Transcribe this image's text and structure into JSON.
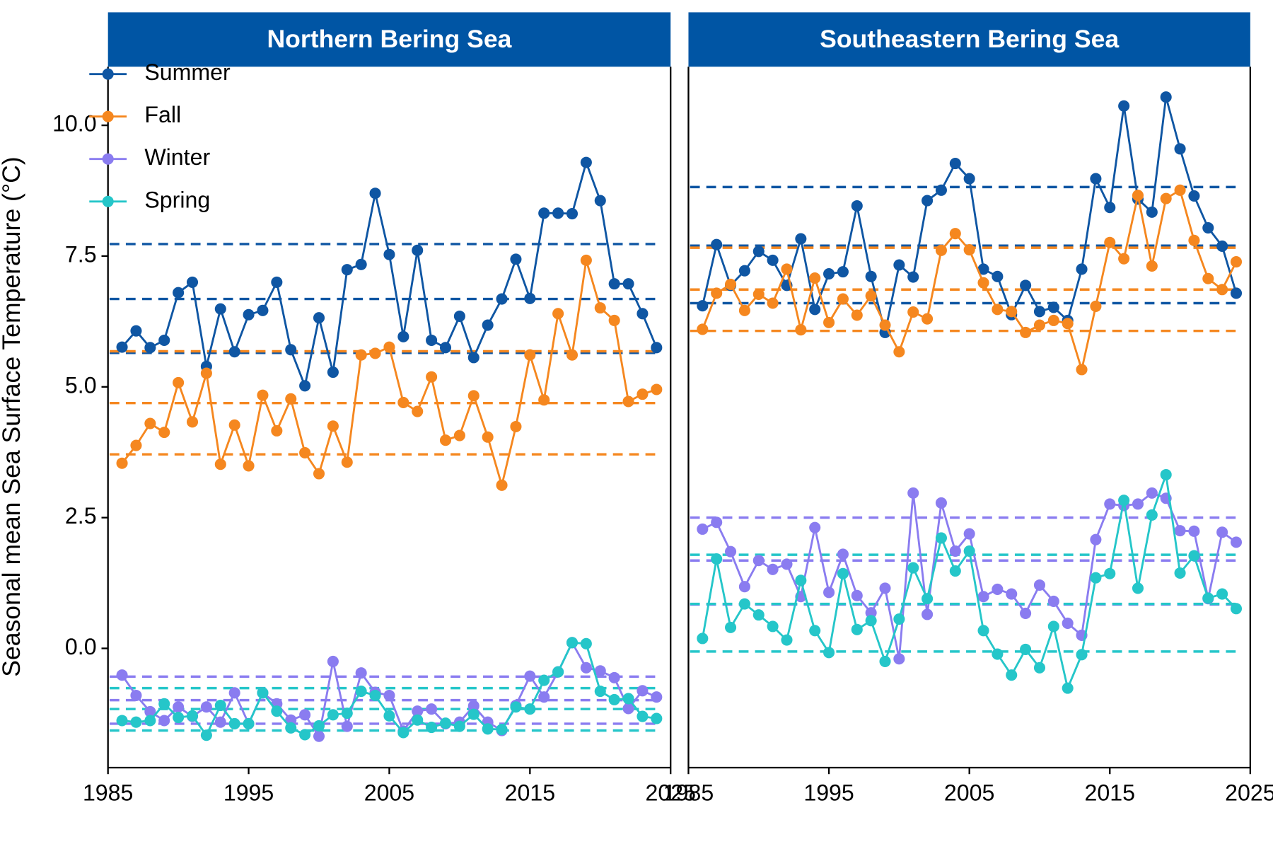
{
  "chart_data": [
    {
      "type": "line",
      "title": "Northern Bering Sea",
      "ylabel": "Seasonal mean Sea Surface Temperature (°C)",
      "legend": "top-left",
      "xlim": [
        1985,
        2025
      ],
      "xticks": [
        1985,
        1995,
        2005,
        2015,
        2025
      ],
      "ylim": [
        -2.28,
        11.12
      ],
      "yticks": [
        {
          "value": 0,
          "label": "0.0"
        },
        2.5,
        {
          "value": 5,
          "label": "5.0"
        },
        7.5,
        {
          "value": 10,
          "label": "10.0"
        }
      ],
      "x": [
        1986,
        1987,
        1988,
        1989,
        1990,
        1991,
        1992,
        1993,
        1994,
        1995,
        1996,
        1997,
        1998,
        1999,
        2000,
        2001,
        2002,
        2003,
        2004,
        2005,
        2006,
        2007,
        2008,
        2009,
        2010,
        2011,
        2012,
        2013,
        2014,
        2015,
        2016,
        2017,
        2018,
        2019,
        2020,
        2021,
        2022,
        2023,
        2024
      ],
      "series": [
        {
          "name": "Summer",
          "color": "#0f56a3",
          "hlines": [
            7.73,
            6.68,
            5.65
          ],
          "values": [
            5.76,
            6.07,
            5.75,
            5.89,
            6.8,
            7.0,
            5.39,
            6.49,
            5.67,
            6.38,
            6.46,
            7.0,
            5.71,
            5.02,
            6.32,
            5.28,
            7.24,
            7.34,
            8.7,
            7.53,
            5.96,
            7.61,
            5.89,
            5.75,
            6.35,
            5.56,
            6.18,
            6.68,
            7.44,
            6.69,
            8.32,
            8.32,
            8.31,
            9.29,
            8.56,
            6.97,
            6.97,
            6.4,
            5.75
          ]
        },
        {
          "name": "Fall",
          "color": "#f5871f",
          "hlines": [
            5.68,
            4.69,
            3.71
          ],
          "values": [
            3.54,
            3.88,
            4.3,
            4.13,
            5.08,
            4.33,
            5.26,
            3.52,
            4.27,
            3.49,
            4.84,
            4.16,
            4.77,
            3.74,
            3.34,
            4.25,
            3.56,
            5.61,
            5.64,
            5.76,
            4.7,
            4.53,
            5.19,
            3.98,
            4.07,
            4.83,
            4.04,
            3.12,
            4.24,
            5.61,
            4.75,
            6.4,
            5.61,
            7.42,
            6.51,
            6.27,
            4.72,
            4.86,
            4.95
          ]
        },
        {
          "name": "Winter",
          "color": "#8a7cf0",
          "hlines": [
            -0.54,
            -0.99,
            -1.44
          ],
          "values": [
            -0.51,
            -0.9,
            -1.21,
            -1.38,
            -1.12,
            -1.3,
            -1.12,
            -1.41,
            -0.85,
            -1.44,
            -0.85,
            -1.06,
            -1.37,
            -1.27,
            -1.68,
            -0.25,
            -1.49,
            -0.47,
            -0.84,
            -0.9,
            -1.58,
            -1.2,
            -1.16,
            -1.44,
            -1.41,
            -1.1,
            -1.41,
            -1.57,
            -1.09,
            -0.53,
            -0.93,
            -0.45,
            0.11,
            -0.37,
            -0.43,
            -0.56,
            -1.15,
            -0.81,
            -0.93
          ]
        },
        {
          "name": "Spring",
          "color": "#25c6c9",
          "hlines": [
            -0.76,
            -1.16,
            -1.57
          ],
          "values": [
            -1.38,
            -1.41,
            -1.38,
            -1.06,
            -1.32,
            -1.29,
            -1.66,
            -1.09,
            -1.44,
            -1.44,
            -0.85,
            -1.2,
            -1.52,
            -1.65,
            -1.48,
            -1.27,
            -1.24,
            -0.82,
            -0.9,
            -1.29,
            -1.61,
            -1.37,
            -1.51,
            -1.43,
            -1.49,
            -1.26,
            -1.54,
            -1.55,
            -1.12,
            -1.16,
            -0.61,
            -0.45,
            0.11,
            0.09,
            -0.82,
            -0.98,
            -0.96,
            -1.3,
            -1.34
          ]
        }
      ]
    },
    {
      "type": "line",
      "title": "Southeastern Bering Sea",
      "xlim": [
        1985,
        2025
      ],
      "xticks": [
        1985,
        1995,
        2005,
        2015,
        2025
      ],
      "ylim": [
        -2.28,
        11.12
      ],
      "x": [
        1986,
        1987,
        1988,
        1989,
        1990,
        1991,
        1992,
        1993,
        1994,
        1995,
        1996,
        1997,
        1998,
        1999,
        2000,
        2001,
        2002,
        2003,
        2004,
        2005,
        2006,
        2007,
        2008,
        2009,
        2010,
        2011,
        2012,
        2013,
        2014,
        2015,
        2016,
        2017,
        2018,
        2019,
        2020,
        2021,
        2022,
        2023,
        2024
      ],
      "series": [
        {
          "color": "#0f56a3",
          "hlines": [
            8.82,
            7.7,
            6.6
          ],
          "values": [
            6.55,
            7.72,
            6.94,
            7.22,
            7.59,
            7.42,
            6.94,
            7.83,
            6.48,
            7.16,
            7.2,
            8.46,
            7.11,
            6.04,
            7.33,
            7.1,
            8.56,
            8.76,
            9.27,
            8.98,
            7.25,
            7.11,
            6.38,
            6.94,
            6.44,
            6.52,
            6.27,
            7.25,
            8.98,
            8.43,
            10.37,
            8.59,
            8.34,
            10.54,
            9.55,
            8.65,
            8.04,
            7.69,
            6.79
          ]
        },
        {
          "color": "#f5871f",
          "hlines": [
            7.66,
            6.86,
            6.07
          ],
          "values": [
            6.1,
            6.79,
            6.96,
            6.46,
            6.77,
            6.6,
            7.25,
            6.09,
            7.08,
            6.23,
            6.68,
            6.37,
            6.74,
            6.18,
            5.67,
            6.43,
            6.3,
            7.61,
            7.93,
            7.62,
            6.99,
            6.48,
            6.44,
            6.04,
            6.18,
            6.27,
            6.21,
            5.33,
            6.54,
            7.76,
            7.45,
            8.66,
            7.31,
            8.6,
            8.76,
            7.8,
            7.07,
            6.86,
            7.39
          ]
        },
        {
          "color": "#8a7cf0",
          "hlines": [
            2.5,
            1.68,
            0.84
          ],
          "values": [
            2.28,
            2.41,
            1.85,
            1.18,
            1.68,
            1.51,
            1.61,
            0.99,
            2.31,
            1.07,
            1.8,
            1.01,
            0.68,
            1.15,
            -0.2,
            2.97,
            0.65,
            2.78,
            1.86,
            2.19,
            0.99,
            1.13,
            1.04,
            0.67,
            1.21,
            0.9,
            0.48,
            0.25,
            2.08,
            2.76,
            2.73,
            2.76,
            2.97,
            2.87,
            2.25,
            2.24,
            0.95,
            2.22,
            2.03
          ]
        },
        {
          "color": "#25c6c9",
          "hlines": [
            1.79,
            0.85,
            -0.06
          ],
          "values": [
            0.19,
            1.71,
            0.4,
            0.85,
            0.64,
            0.42,
            0.16,
            1.3,
            0.34,
            -0.08,
            1.43,
            0.36,
            0.53,
            -0.25,
            0.56,
            1.54,
            0.95,
            2.11,
            1.48,
            1.86,
            0.34,
            -0.11,
            -0.51,
            -0.02,
            -0.37,
            0.42,
            -0.76,
            -0.12,
            1.35,
            1.43,
            2.83,
            1.15,
            2.55,
            3.32,
            1.44,
            1.77,
            0.96,
            1.04,
            0.76
          ]
        }
      ]
    }
  ]
}
